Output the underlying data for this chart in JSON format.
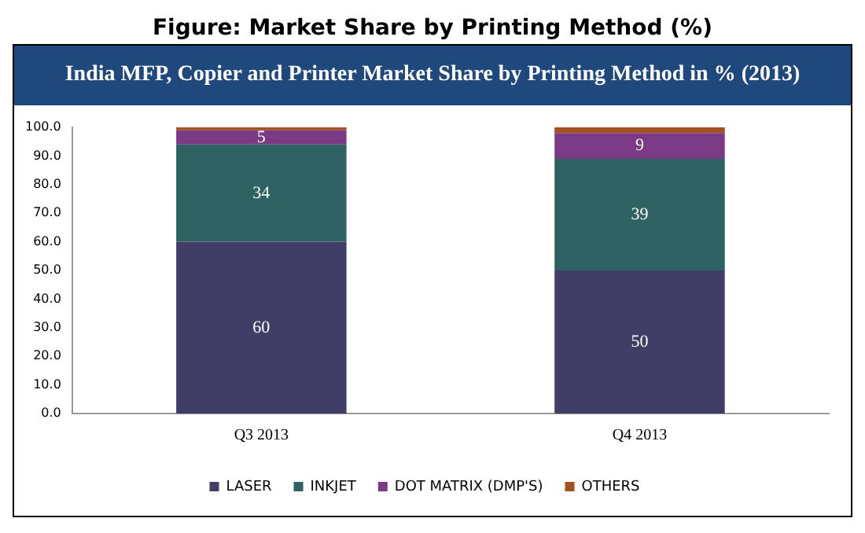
{
  "chart_data": {
    "type": "bar",
    "title": "Figure: Market Share by Printing Method (%)",
    "subtitle": "India MFP, Copier and Printer Market Share by Printing Method in % (2013)",
    "categories": [
      "Q3 2013",
      "Q4 2013"
    ],
    "stacked": true,
    "series": [
      {
        "name": "LASER",
        "color": "#403e66",
        "values": [
          60,
          50
        ],
        "value_labels": [
          "60",
          "50"
        ]
      },
      {
        "name": "INKJET",
        "color": "#2f6263",
        "values": [
          34,
          39
        ],
        "value_labels": [
          "34",
          "39"
        ]
      },
      {
        "name": "DOT MATRIX (DMP'S)",
        "color": "#7b3a86",
        "values": [
          5,
          9
        ],
        "value_labels": [
          "5",
          "9"
        ]
      },
      {
        "name": "OTHERS",
        "color": "#a5501f",
        "values": [
          1,
          2
        ],
        "value_labels": [
          null,
          null
        ]
      }
    ],
    "ylim": [
      0,
      100
    ],
    "yticks": [
      {
        "value": 0,
        "label": "0.0"
      },
      {
        "value": 10,
        "label": "10.0"
      },
      {
        "value": 20,
        "label": "20.0"
      },
      {
        "value": 30,
        "label": "30.0"
      },
      {
        "value": 40,
        "label": "40.0"
      },
      {
        "value": 50,
        "label": "50.0"
      },
      {
        "value": 60,
        "label": "60.0"
      },
      {
        "value": 70,
        "label": "70.0"
      },
      {
        "value": 80,
        "label": "80.0"
      },
      {
        "value": 90,
        "label": "90.0"
      },
      {
        "value": 100,
        "label": "100.0"
      }
    ],
    "grid": false,
    "legend": "bottom"
  }
}
